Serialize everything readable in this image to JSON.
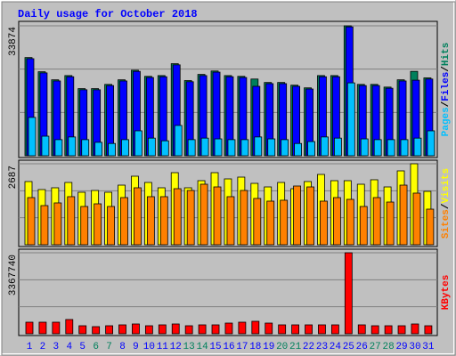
{
  "chart_data": [
    {
      "type": "bar",
      "title": "Daily usage for October 2018",
      "categories": [
        "1",
        "2",
        "3",
        "4",
        "5",
        "6",
        "7",
        "8",
        "9",
        "10",
        "11",
        "12",
        "13",
        "14",
        "15",
        "16",
        "17",
        "18",
        "19",
        "20",
        "21",
        "22",
        "23",
        "24",
        "25",
        "26",
        "27",
        "28",
        "29",
        "30",
        "31"
      ],
      "ylim": [
        0,
        33874
      ],
      "yticks": [
        33874
      ],
      "legend_separator": "/",
      "series": [
        {
          "name": "Hits",
          "color": "#00805c",
          "values": [
            25600,
            21900,
            19800,
            20900,
            17500,
            17500,
            18600,
            19800,
            22300,
            20700,
            20900,
            24000,
            19600,
            21200,
            22100,
            20900,
            20700,
            20000,
            19100,
            19100,
            18400,
            17700,
            20900,
            20900,
            33874,
            18600,
            18600,
            17900,
            19800,
            22000,
            20300
          ]
        },
        {
          "name": "Files",
          "color": "#0000ff",
          "values": [
            25300,
            21600,
            19500,
            20600,
            17200,
            17200,
            18300,
            19500,
            22000,
            20400,
            20600,
            23700,
            19300,
            20900,
            21800,
            20600,
            20400,
            18100,
            18800,
            18800,
            18100,
            17400,
            20600,
            20600,
            33600,
            18300,
            18300,
            17600,
            19500,
            19700,
            20000
          ]
        },
        {
          "name": "Pages",
          "color": "#00c0ff",
          "values": [
            10000,
            5100,
            4200,
            4900,
            4200,
            3500,
            3200,
            4200,
            6500,
            4600,
            3900,
            7900,
            4200,
            4600,
            4400,
            4200,
            4200,
            4900,
            4400,
            4200,
            3200,
            3700,
            4900,
            4600,
            19000,
            4400,
            4200,
            4200,
            4200,
            4600,
            6500
          ]
        }
      ]
    },
    {
      "type": "bar",
      "categories": [
        "1",
        "2",
        "3",
        "4",
        "5",
        "6",
        "7",
        "8",
        "9",
        "10",
        "11",
        "12",
        "13",
        "14",
        "15",
        "16",
        "17",
        "18",
        "19",
        "20",
        "21",
        "22",
        "23",
        "24",
        "25",
        "26",
        "27",
        "28",
        "29",
        "30",
        "31"
      ],
      "ylim": [
        0,
        2687
      ],
      "yticks": [
        2687
      ],
      "legend_separator": "/",
      "series": [
        {
          "name": "Visits",
          "color": "#ffff00",
          "values": [
            2097,
            1831,
            1890,
            2067,
            1742,
            1801,
            1742,
            1978,
            2274,
            2067,
            1890,
            2392,
            1890,
            2126,
            2392,
            2185,
            2244,
            2037,
            1919,
            2067,
            1860,
            2097,
            2333,
            2126,
            2126,
            2008,
            2156,
            1919,
            2451,
            2687,
            1772
          ]
        },
        {
          "name": "Sites",
          "color": "#ff8000",
          "values": [
            1565,
            1299,
            1388,
            1595,
            1270,
            1358,
            1270,
            1565,
            1890,
            1595,
            1595,
            1860,
            1801,
            2008,
            1919,
            1595,
            1801,
            1536,
            1447,
            1477,
            1949,
            1919,
            1447,
            1565,
            1506,
            1270,
            1565,
            1417,
            1978,
            1713,
            1181
          ]
        }
      ]
    },
    {
      "type": "bar",
      "categories": [
        "1",
        "2",
        "3",
        "4",
        "5",
        "6",
        "7",
        "8",
        "9",
        "10",
        "11",
        "12",
        "13",
        "14",
        "15",
        "16",
        "17",
        "18",
        "19",
        "20",
        "21",
        "22",
        "23",
        "24",
        "25",
        "26",
        "27",
        "28",
        "29",
        "30",
        "31"
      ],
      "category_colors": [
        "#0000ff",
        "#0000ff",
        "#0000ff",
        "#0000ff",
        "#0000ff",
        "#00805c",
        "#00805c",
        "#0000ff",
        "#0000ff",
        "#0000ff",
        "#0000ff",
        "#0000ff",
        "#00805c",
        "#00805c",
        "#0000ff",
        "#0000ff",
        "#0000ff",
        "#0000ff",
        "#0000ff",
        "#00805c",
        "#00805c",
        "#0000ff",
        "#0000ff",
        "#0000ff",
        "#0000ff",
        "#0000ff",
        "#00805c",
        "#00805c",
        "#0000ff",
        "#0000ff",
        "#0000ff"
      ],
      "ylim": [
        0,
        3367740
      ],
      "yticks": [
        3367740
      ],
      "series": [
        {
          "name": "KBytes",
          "color": "#ff0000",
          "values": [
            481000,
            481000,
            481000,
            592000,
            333000,
            296000,
            333000,
            370000,
            407000,
            333000,
            370000,
            407000,
            333000,
            370000,
            370000,
            444000,
            481000,
            518000,
            444000,
            370000,
            370000,
            370000,
            370000,
            370000,
            3367740,
            370000,
            333000,
            333000,
            333000,
            407000,
            333000
          ]
        }
      ]
    }
  ]
}
